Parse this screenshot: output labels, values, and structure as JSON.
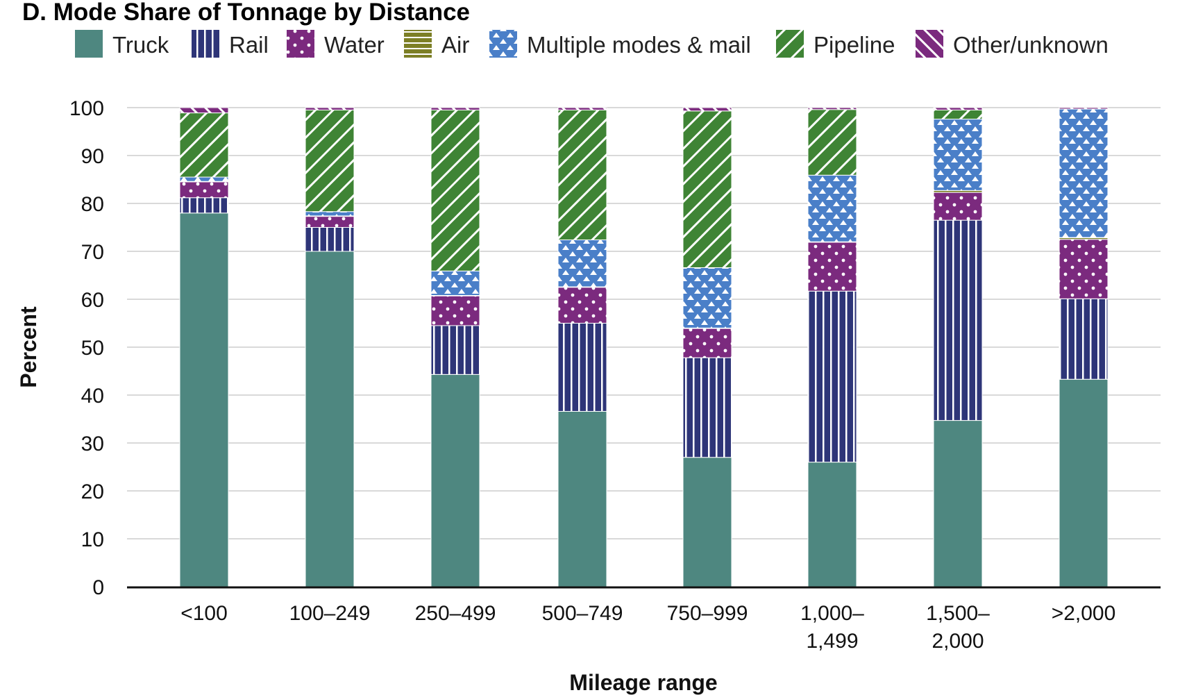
{
  "chart_data": {
    "type": "bar",
    "stacked": true,
    "title": "D. Mode Share of Tonnage by Distance",
    "xlabel": "Mileage range",
    "ylabel": "Percent",
    "ylim": [
      0,
      100
    ],
    "yticks": [
      0,
      10,
      20,
      30,
      40,
      50,
      60,
      70,
      80,
      90,
      100
    ],
    "grid": true,
    "legend_position": "top",
    "categories": [
      [
        "<100"
      ],
      [
        "100–249"
      ],
      [
        "250–499"
      ],
      [
        "500–749"
      ],
      [
        "750–999"
      ],
      [
        "1,000–",
        "1,499"
      ],
      [
        "1,500–",
        "2,000"
      ],
      [
        ">2,000"
      ]
    ],
    "series": [
      {
        "name": "Truck",
        "color": "#4E8780",
        "pattern": "solid",
        "values": [
          78,
          70,
          44.3,
          36.6,
          27,
          26,
          34.7,
          43.3
        ]
      },
      {
        "name": "Rail",
        "color": "#2E3578",
        "pattern": "vertical-lines",
        "values": [
          3.2,
          5,
          10.2,
          18.4,
          20.8,
          35.7,
          41.8,
          16.8
        ]
      },
      {
        "name": "Water",
        "color": "#7B2A7E",
        "pattern": "dots",
        "values": [
          3.3,
          2.3,
          6.2,
          7.5,
          6.1,
          10.2,
          5.8,
          12.4
        ]
      },
      {
        "name": "Air",
        "color": "#7C7F25",
        "pattern": "horizontal-lines",
        "values": [
          0.1,
          0.1,
          0.1,
          0.1,
          0.1,
          0.1,
          0.4,
          0.4
        ]
      },
      {
        "name": "Multiple modes & mail",
        "color": "#4A7FC8",
        "pattern": "triangles",
        "values": [
          0.9,
          0.9,
          5.1,
          9.8,
          12.6,
          13.9,
          14.9,
          26.8
        ]
      },
      {
        "name": "Pipeline",
        "color": "#3F8435",
        "pattern": "diagonal-lines",
        "values": [
          13.4,
          21.2,
          33.6,
          27.1,
          32.7,
          13.7,
          1.9,
          0
        ]
      },
      {
        "name": "Other/unknown",
        "color": "#7B2A7E",
        "pattern": "diagonal-lines",
        "values": [
          1.1,
          0.5,
          0.5,
          0.5,
          0.7,
          0.4,
          0.5,
          0.3
        ]
      }
    ]
  }
}
